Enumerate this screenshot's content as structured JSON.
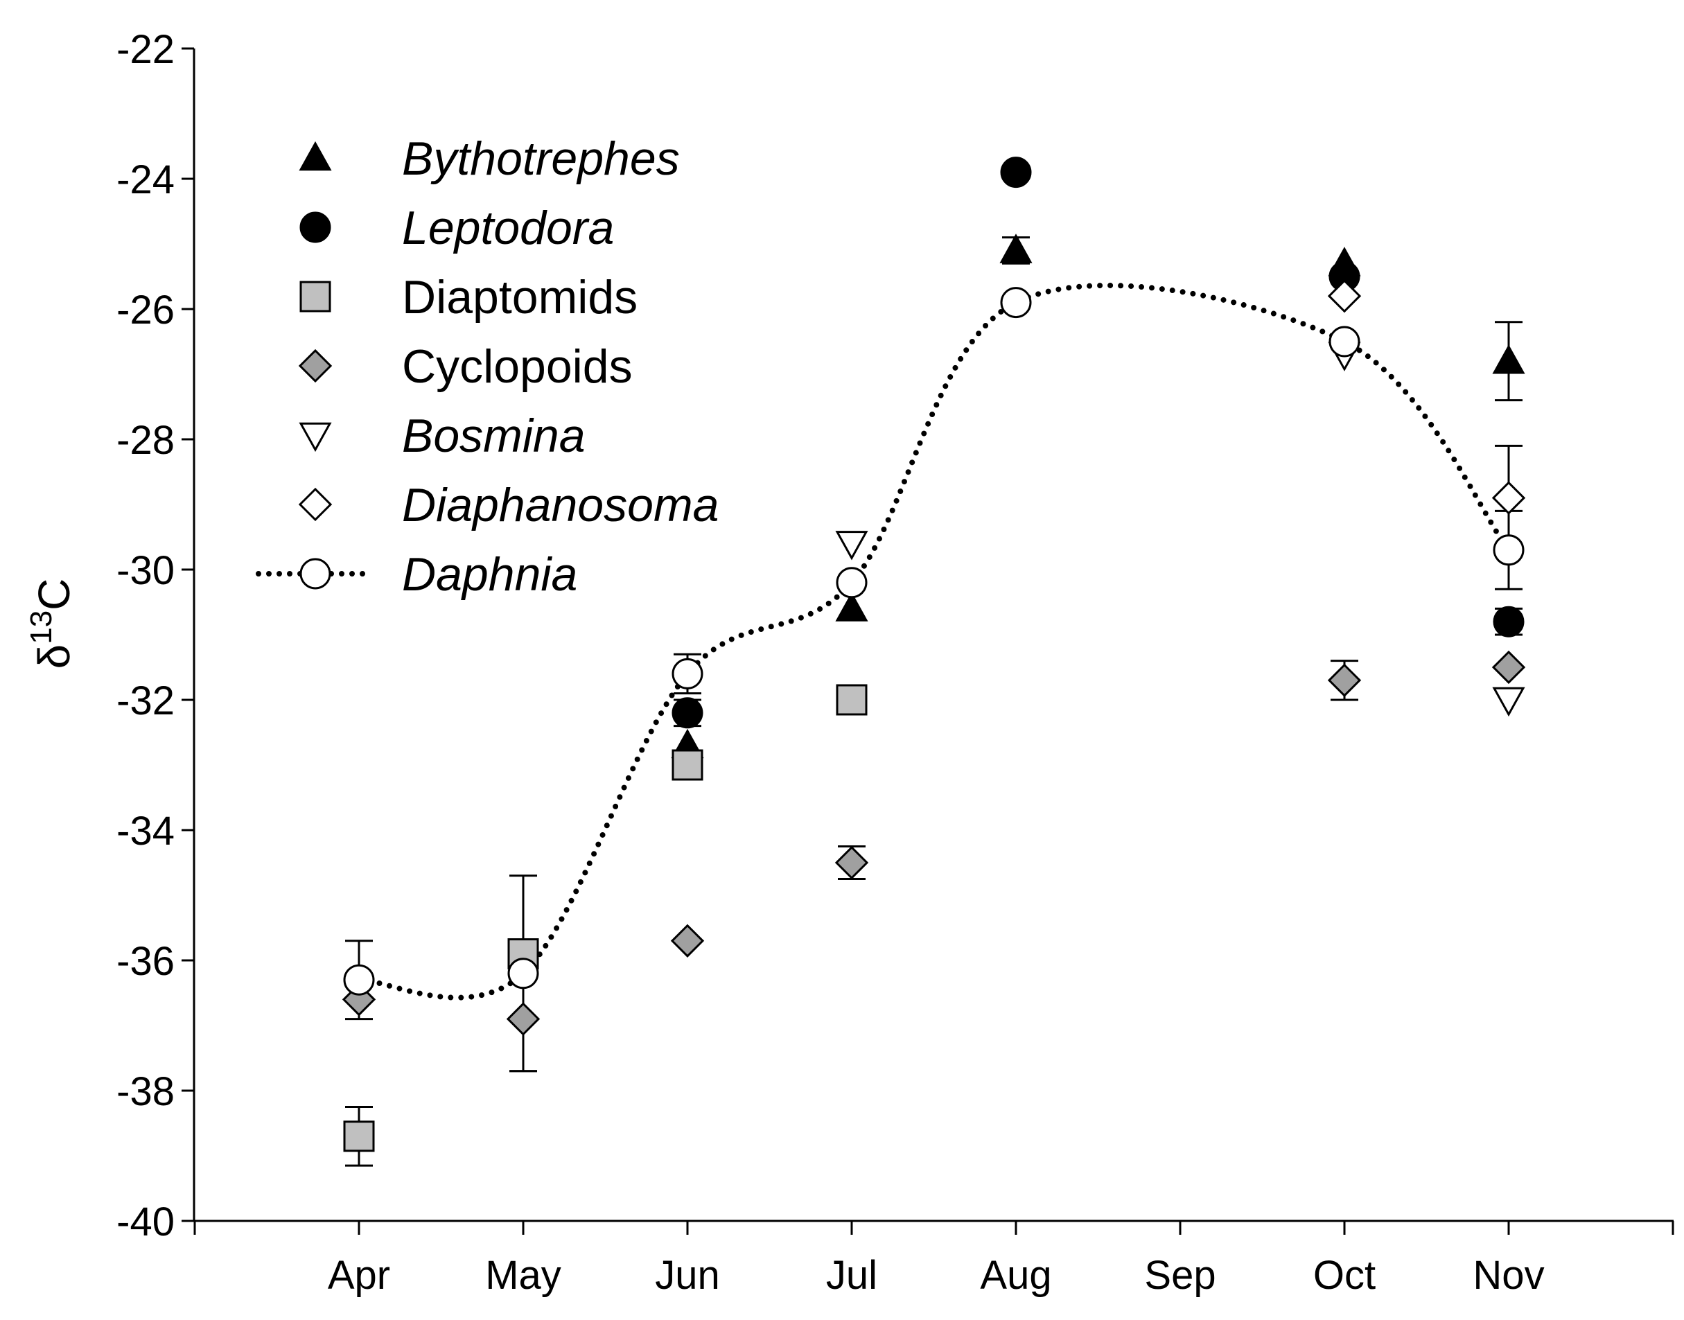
{
  "chart_data": {
    "type": "scatter",
    "title": "",
    "xlabel": "",
    "ylabel": {
      "delta": "δ",
      "isotope": "13",
      "element": "C"
    },
    "ylim": [
      -40,
      -22
    ],
    "yticks": [
      -22,
      -24,
      -26,
      -28,
      -30,
      -32,
      -34,
      -36,
      -38,
      -40
    ],
    "ytick_labels": [
      "-22",
      "-24",
      "-26",
      "-28",
      "-30",
      "-32",
      "-34",
      "-36",
      "-38",
      "-40"
    ],
    "categories": [
      "Apr",
      "May",
      "Jun",
      "Jul",
      "Aug",
      "Sep",
      "Oct",
      "Nov"
    ],
    "legend_position": "upper-left",
    "series": [
      {
        "name": "Bythotrephes",
        "italic": true,
        "marker": "triangle-up",
        "fill": "#000000",
        "stroke": "#000000",
        "points": [
          {
            "x": "Jun",
            "y": -32.7
          },
          {
            "x": "Jul",
            "y": -30.6
          },
          {
            "x": "Aug",
            "y": -25.1,
            "err": 0.2
          },
          {
            "x": "Oct",
            "y": -25.3
          },
          {
            "x": "Nov",
            "y": -26.8,
            "err": 0.6
          }
        ]
      },
      {
        "name": "Leptodora",
        "italic": true,
        "marker": "circle",
        "fill": "#000000",
        "stroke": "#000000",
        "points": [
          {
            "x": "Jun",
            "y": -32.2,
            "err": 0.2
          },
          {
            "x": "Aug",
            "y": -23.9
          },
          {
            "x": "Oct",
            "y": -25.5
          },
          {
            "x": "Nov",
            "y": -30.8,
            "err": 0.2
          }
        ]
      },
      {
        "name": "Diaptomids",
        "italic": false,
        "marker": "square",
        "fill": "#c0c0c0",
        "stroke": "#000000",
        "points": [
          {
            "x": "Apr",
            "y": -38.7,
            "err": 0.45
          },
          {
            "x": "May",
            "y": -35.9
          },
          {
            "x": "Jun",
            "y": -33.0
          },
          {
            "x": "Jul",
            "y": -32.0
          }
        ]
      },
      {
        "name": "Cyclopoids",
        "italic": false,
        "marker": "diamond",
        "fill": "#a0a0a0",
        "stroke": "#000000",
        "points": [
          {
            "x": "Apr",
            "y": -36.6
          },
          {
            "x": "May",
            "y": -36.9,
            "err": 0.8
          },
          {
            "x": "Jun",
            "y": -35.7
          },
          {
            "x": "Jul",
            "y": -34.5,
            "err": 0.25
          },
          {
            "x": "Oct",
            "y": -31.7,
            "err": 0.3
          },
          {
            "x": "Nov",
            "y": -31.5
          }
        ]
      },
      {
        "name": "Bosmina",
        "italic": true,
        "marker": "triangle-down",
        "fill": "#ffffff",
        "stroke": "#000000",
        "points": [
          {
            "x": "Jul",
            "y": -29.6
          },
          {
            "x": "Oct",
            "y": -26.7
          },
          {
            "x": "Nov",
            "y": -32.0
          }
        ]
      },
      {
        "name": "Diaphanosoma",
        "italic": true,
        "marker": "diamond",
        "fill": "#ffffff",
        "stroke": "#000000",
        "points": [
          {
            "x": "Oct",
            "y": -25.8
          },
          {
            "x": "Nov",
            "y": -28.9,
            "err": 0.8
          }
        ]
      },
      {
        "name": "Daphnia",
        "italic": true,
        "marker": "circle",
        "fill": "#ffffff",
        "stroke": "#000000",
        "line": "dotted",
        "points": [
          {
            "x": "Apr",
            "y": -36.3,
            "err": 0.6
          },
          {
            "x": "May",
            "y": -36.2,
            "err": 1.5
          },
          {
            "x": "Jun",
            "y": -31.6,
            "err": 0.3
          },
          {
            "x": "Jul",
            "y": -30.2
          },
          {
            "x": "Aug",
            "y": -25.9
          },
          {
            "x": "Oct",
            "y": -26.5
          },
          {
            "x": "Nov",
            "y": -29.7,
            "err": 0.6
          }
        ]
      }
    ]
  }
}
